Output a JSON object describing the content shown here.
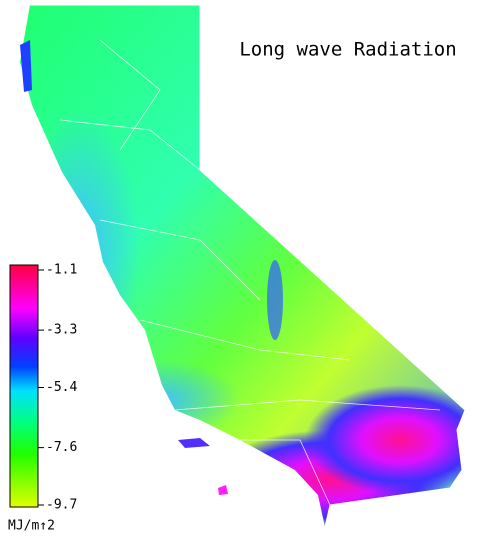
{
  "title": "Long wave Radiation",
  "legend": {
    "ticks": [
      -1.1,
      -3.3,
      -5.4,
      -7.6,
      -9.7
    ],
    "unit": "MJ/m↑2"
  }
}
